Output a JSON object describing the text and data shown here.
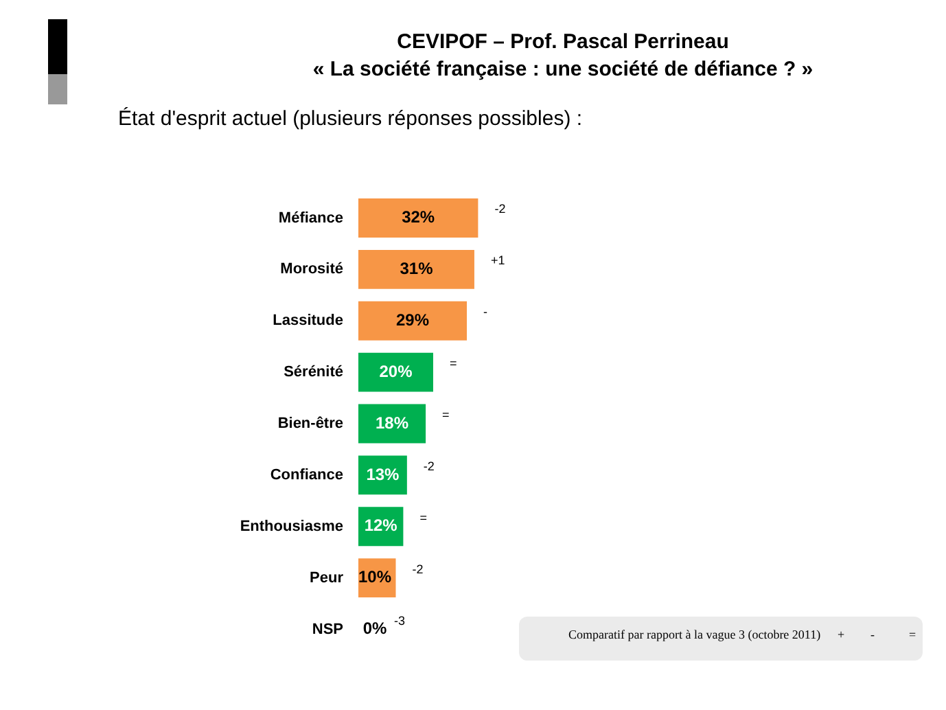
{
  "chart_data": {
    "type": "bar",
    "orientation": "horizontal",
    "title": "CEVIPOF – Prof. Pascal Perrineau",
    "subtitle": "« La société française : une société de défiance ? »",
    "categories": [
      "Méfiance",
      "Morosité",
      "Lassitude",
      "Sérénité",
      "Bien-être",
      "Confiance",
      "Enthousiasme",
      "Peur",
      "NSP"
    ],
    "values": [
      32,
      31,
      29,
      20,
      18,
      13,
      12,
      10,
      0
    ],
    "colors": [
      "#f79646",
      "#f79646",
      "#f79646",
      "#00b050",
      "#00b050",
      "#00b050",
      "#00b050",
      "#f79646",
      "#f79646"
    ],
    "value_labels": [
      "32%",
      "31%",
      "29%",
      "20%",
      "18%",
      "13%",
      "12%",
      "10%",
      "0%"
    ],
    "tick_labels": "y",
    "legend": false,
    "annotations": [
      "État d'esprit actuel (plusieurs réponses possibles) :",
      {
        "text": "-2",
        "x": 32,
        "y": "Méfiance"
      },
      {
        "text": "+1",
        "x": 31,
        "y": "Morosité"
      },
      {
        "text": "-",
        "x": 29,
        "y": "Lassitude"
      },
      {
        "text": "=",
        "x": 20,
        "y": "Sérénité"
      },
      {
        "text": "=",
        "x": 18,
        "y": "Bien-être"
      },
      {
        "text": "-2",
        "x": 13,
        "y": "Confiance"
      },
      {
        "text": "=",
        "x": 12,
        "y": "Enthousiasme"
      },
      {
        "text": "-2",
        "x": 10,
        "y": "Peur"
      },
      {
        "text": "-3",
        "x": 0,
        "y": "NSP"
      },
      "Comparatif par rapport à la vague 3 (octobre 2011)",
      "+",
      "-",
      "="
    ]
  }
}
